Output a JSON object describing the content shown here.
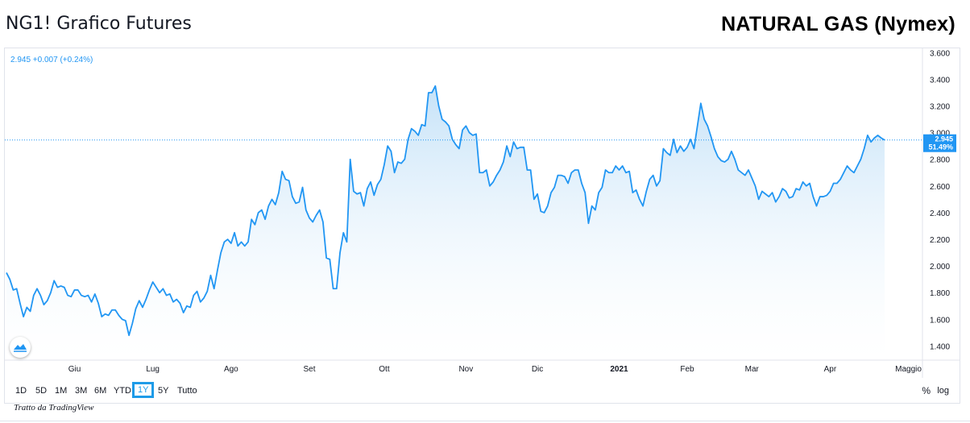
{
  "header": {
    "title": "NG1! Grafico Futures",
    "brand": "NATURAL GAS (Nymex)"
  },
  "legend": {
    "text": "2.945 +0.007 (+0.24%)"
  },
  "price_label": {
    "value": "2.945",
    "change": "51.49%"
  },
  "toolbar": {
    "ranges": [
      "1D",
      "5D",
      "1M",
      "3M",
      "6M",
      "YTD",
      "1Y",
      "5Y",
      "Tutto"
    ],
    "active_range": "1Y",
    "percent_label": "%",
    "log_label": "log"
  },
  "credit": "Tratto da TradingView",
  "colors": {
    "line": "#2196f3",
    "fill_top": "#bfdff7",
    "fill_bottom": "#ffffff",
    "label_bg": "#2196f3",
    "active_border": "#1e9be8"
  },
  "chart_data": {
    "type": "area",
    "series": [
      {
        "values": [
          1.95,
          1.9,
          1.82,
          1.83,
          1.72,
          1.62,
          1.69,
          1.66,
          1.78,
          1.83,
          1.78,
          1.71,
          1.74,
          1.8,
          1.89,
          1.84,
          1.85,
          1.84,
          1.78,
          1.77,
          1.82,
          1.82,
          1.78,
          1.77,
          1.78,
          1.73,
          1.79,
          1.72,
          1.62,
          1.64,
          1.63,
          1.67,
          1.67,
          1.63,
          1.6,
          1.59,
          1.48,
          1.57,
          1.68,
          1.74,
          1.69,
          1.75,
          1.82,
          1.88,
          1.84,
          1.8,
          1.83,
          1.78,
          1.79,
          1.73,
          1.75,
          1.72,
          1.65,
          1.7,
          1.69,
          1.78,
          1.81,
          1.73,
          1.76,
          1.81,
          1.93,
          1.83,
          1.97,
          2.1,
          2.18,
          2.2,
          2.17,
          2.25,
          2.15,
          2.18,
          2.15,
          2.18,
          2.35,
          2.31,
          2.4,
          2.42,
          2.35,
          2.45,
          2.5,
          2.46,
          2.55,
          2.71,
          2.65,
          2.64,
          2.52,
          2.47,
          2.48,
          2.59,
          2.42,
          2.36,
          2.33,
          2.38,
          2.42,
          2.33,
          2.06,
          2.05,
          1.83,
          1.83,
          2.1,
          2.25,
          2.18,
          2.8,
          2.56,
          2.54,
          2.55,
          2.45,
          2.58,
          2.63,
          2.53,
          2.61,
          2.65,
          2.76,
          2.9,
          2.86,
          2.7,
          2.78,
          2.77,
          2.8,
          2.95,
          3.03,
          3.01,
          2.98,
          3.06,
          3.05,
          3.3,
          3.3,
          3.35,
          3.2,
          3.1,
          3.08,
          3.05,
          2.95,
          2.91,
          2.88,
          3.02,
          3.05,
          3.0,
          2.98,
          2.99,
          2.7,
          2.7,
          2.72,
          2.6,
          2.63,
          2.68,
          2.72,
          2.78,
          2.9,
          2.82,
          2.93,
          2.88,
          2.89,
          2.89,
          2.72,
          2.72,
          2.5,
          2.54,
          2.41,
          2.4,
          2.45,
          2.55,
          2.59,
          2.68,
          2.68,
          2.67,
          2.62,
          2.7,
          2.72,
          2.72,
          2.62,
          2.55,
          2.32,
          2.45,
          2.42,
          2.55,
          2.59,
          2.72,
          2.7,
          2.7,
          2.75,
          2.72,
          2.75,
          2.7,
          2.71,
          2.55,
          2.57,
          2.5,
          2.45,
          2.56,
          2.65,
          2.68,
          2.6,
          2.64,
          2.88,
          2.85,
          2.83,
          2.95,
          2.85,
          2.9,
          2.86,
          2.89,
          2.95,
          2.88,
          3.05,
          3.22,
          3.1,
          3.05,
          2.97,
          2.88,
          2.82,
          2.79,
          2.78,
          2.8,
          2.86,
          2.8,
          2.72,
          2.7,
          2.68,
          2.72,
          2.66,
          2.6,
          2.5,
          2.56,
          2.54,
          2.52,
          2.55,
          2.48,
          2.52,
          2.58,
          2.56,
          2.51,
          2.52,
          2.58,
          2.57,
          2.63,
          2.6,
          2.62,
          2.52,
          2.45,
          2.52,
          2.52,
          2.53,
          2.56,
          2.62,
          2.62,
          2.65,
          2.7,
          2.75,
          2.72,
          2.7,
          2.75,
          2.8,
          2.88,
          2.98,
          2.93,
          2.96,
          2.98,
          2.96,
          2.945
        ]
      }
    ],
    "x_tick_labels": [
      {
        "label": "Giu",
        "index": 20
      },
      {
        "label": "Lug",
        "index": 43
      },
      {
        "label": "Ago",
        "index": 66
      },
      {
        "label": "Set",
        "index": 89
      },
      {
        "label": "Ott",
        "index": 111
      },
      {
        "label": "Nov",
        "index": 135
      },
      {
        "label": "Dic",
        "index": 156
      },
      {
        "label": "2021",
        "index": 180
      },
      {
        "label": "Feb",
        "index": 200
      },
      {
        "label": "Mar",
        "index": 219
      },
      {
        "label": "Apr",
        "index": 242
      },
      {
        "label": "Maggio",
        "index": 265
      }
    ],
    "y_ticks": [
      "3.600",
      "3.400",
      "3.200",
      "3.000",
      "2.800",
      "2.600",
      "2.400",
      "2.200",
      "2.000",
      "1.800",
      "1.600",
      "1.400"
    ],
    "ylim": [
      1.3,
      3.62
    ],
    "last_value": 2.945,
    "grid": false
  }
}
